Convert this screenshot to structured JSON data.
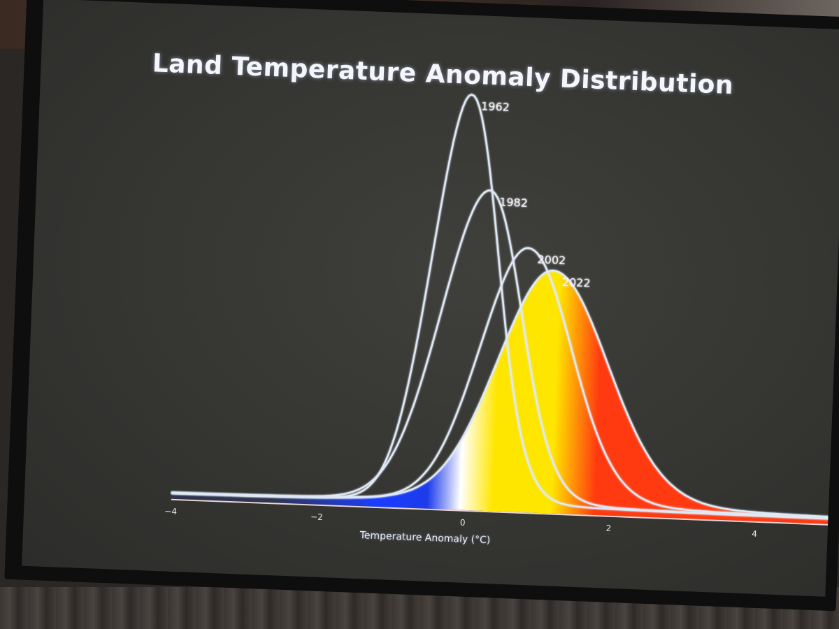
{
  "chart_data": {
    "type": "area",
    "title": "Land Temperature Anomaly Distribution",
    "xlabel": "Temperature Anomaly (°C)",
    "ylabel": "",
    "xlim": [
      -4,
      5
    ],
    "ylim": [
      0,
      1.0
    ],
    "x_ticks": [
      -4,
      -2,
      0,
      2,
      4
    ],
    "grid": "vertical lines at ticks",
    "legend": "labels at curve peaks",
    "series": [
      {
        "name": "1962",
        "peak_x": -0.1,
        "peak_y": 0.95,
        "sigma_left": 0.45,
        "sigma_right": 0.45,
        "tail": 0.03,
        "style": "outline"
      },
      {
        "name": "1982",
        "peak_x": 0.2,
        "peak_y": 0.73,
        "sigma_left": 0.6,
        "sigma_right": 0.5,
        "tail": 0.035,
        "style": "outline"
      },
      {
        "name": "2002",
        "peak_x": 0.75,
        "peak_y": 0.6,
        "sigma_left": 0.6,
        "sigma_right": 0.65,
        "tail": 0.04,
        "style": "outline"
      },
      {
        "name": "2022",
        "peak_x": 1.1,
        "peak_y": 0.55,
        "sigma_left": 0.7,
        "sigma_right": 0.8,
        "tail": 0.045,
        "style": "filled"
      }
    ],
    "colors": {
      "cold": "#1a3cff",
      "neutral": "#ffffff",
      "warm": "#ffe600",
      "hot": "#ff3a10",
      "line": "#dfe9f5",
      "background": "#353532"
    }
  }
}
